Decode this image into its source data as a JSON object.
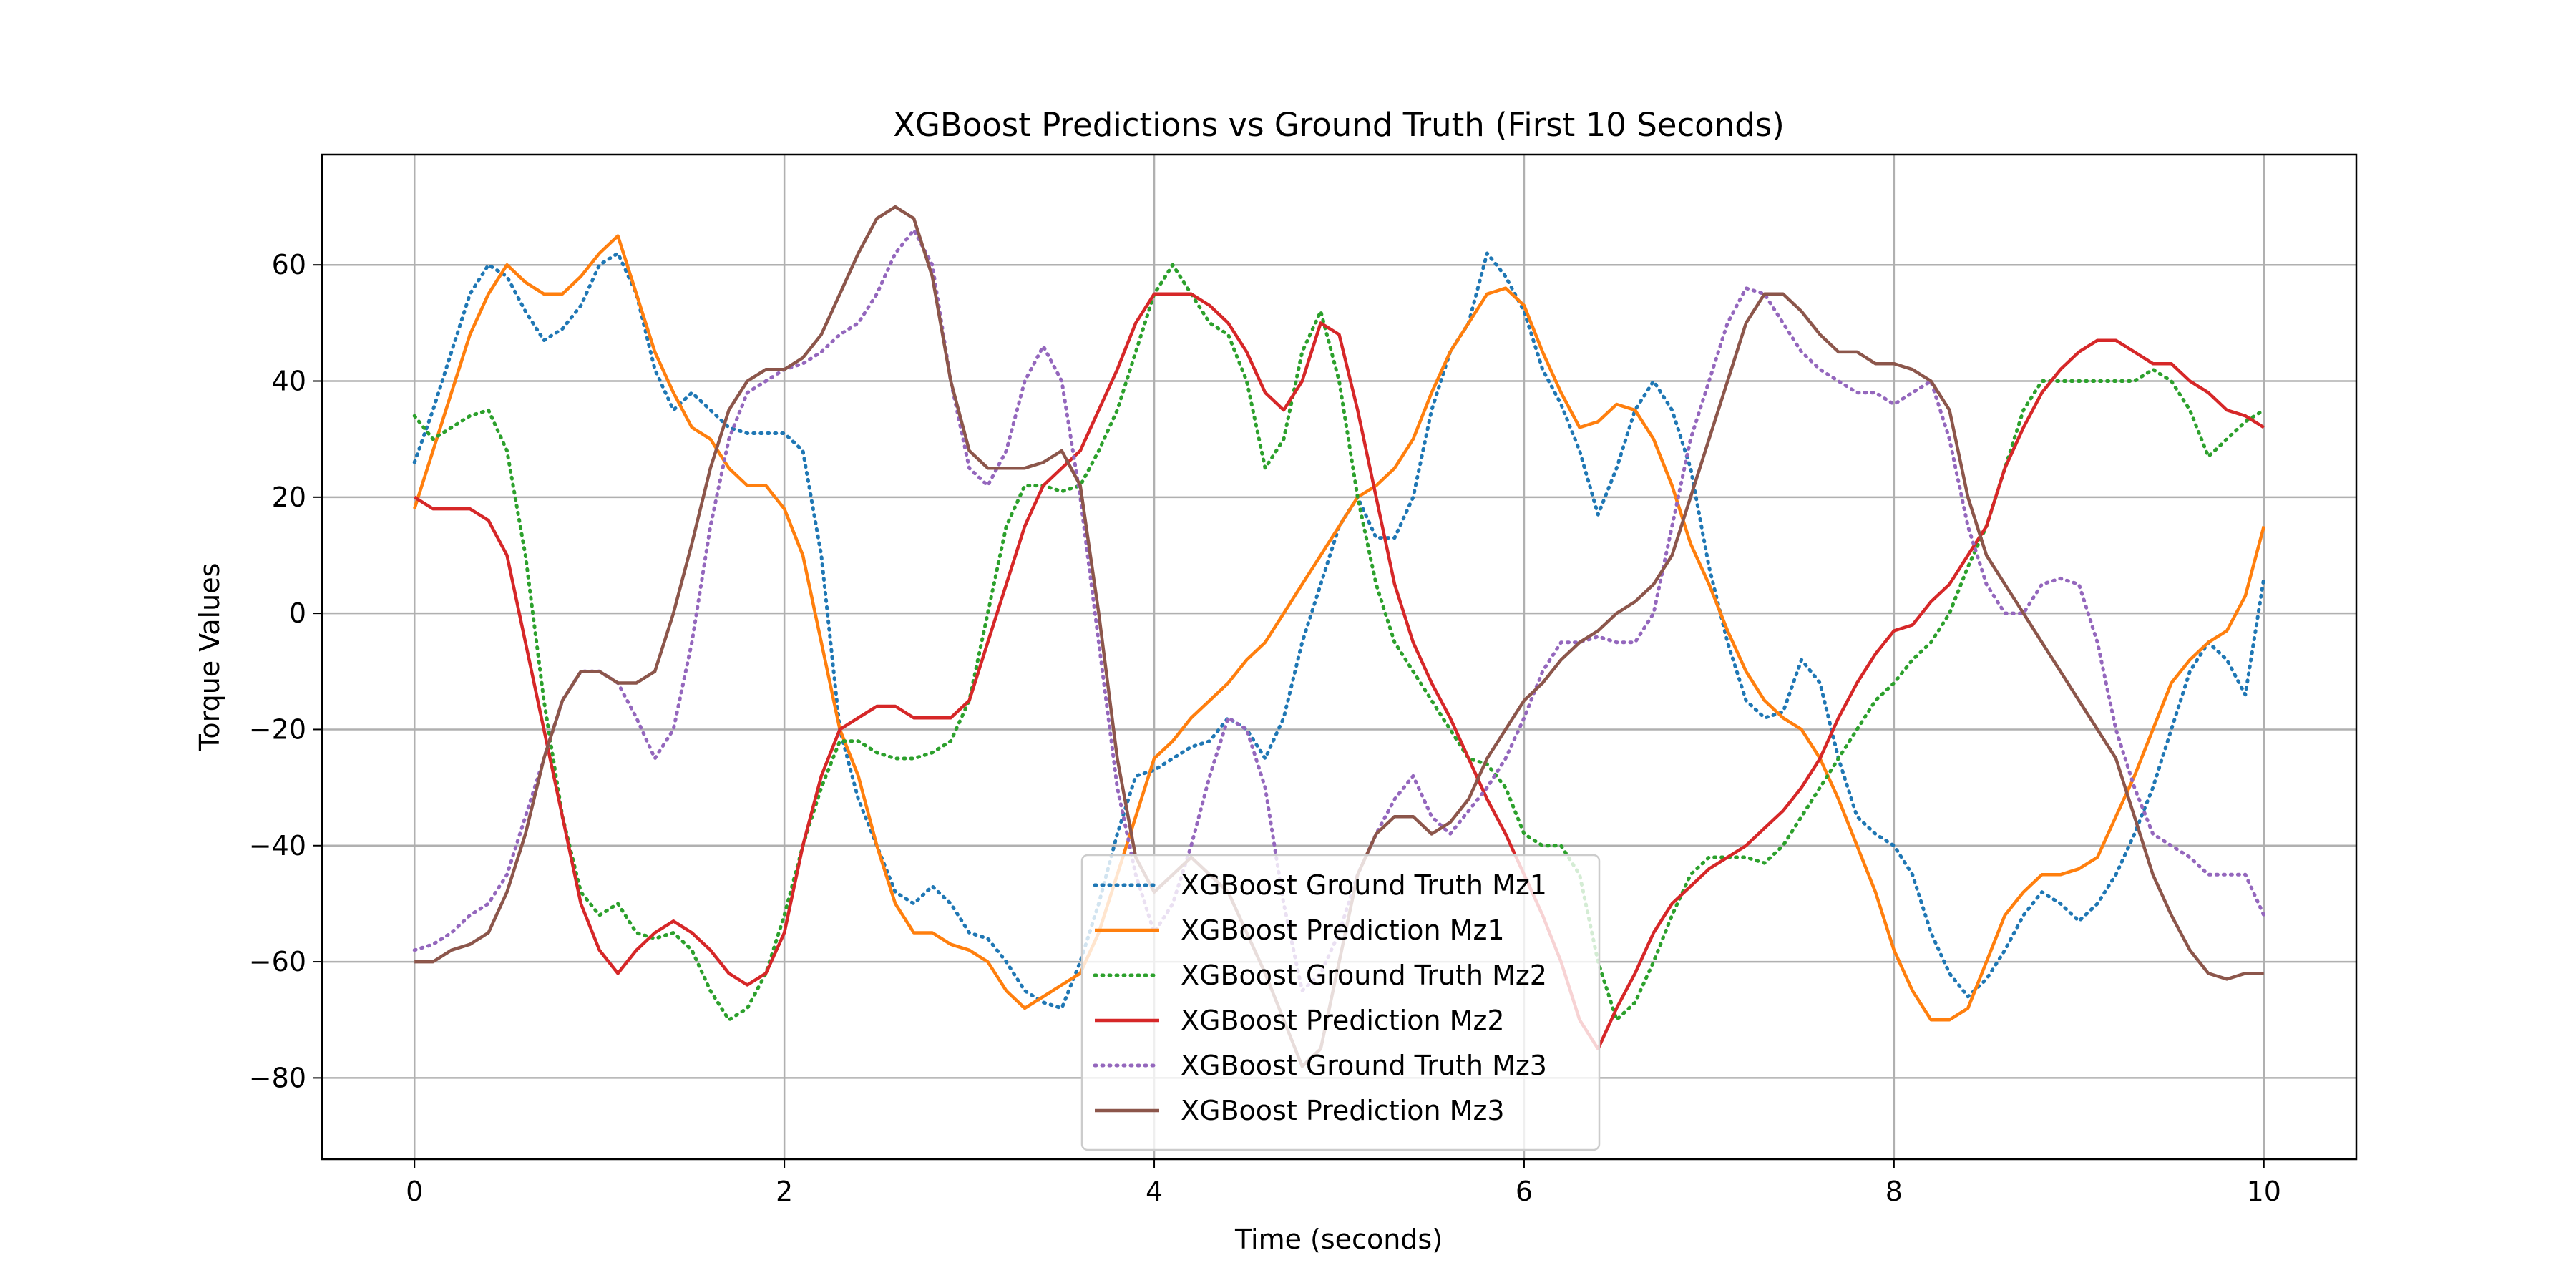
{
  "chart_data": {
    "type": "line",
    "title": "XGBoost Predictions vs Ground Truth (First 10 Seconds)",
    "xlabel": "Time (seconds)",
    "ylabel": "Torque Values",
    "xlim": [
      -0.5,
      10.5
    ],
    "ylim": [
      -94,
      79
    ],
    "xticks": [
      0,
      2,
      4,
      6,
      8,
      10
    ],
    "yticks": [
      -80,
      -60,
      -40,
      -20,
      0,
      20,
      40,
      60
    ],
    "grid": true,
    "legend": "lower-center",
    "series": [
      {
        "name": "XGBoost Ground Truth Mz1",
        "color": "#1f77b4",
        "style": "dotted",
        "x": [
          0,
          0.1,
          0.2,
          0.3,
          0.4,
          0.5,
          0.6,
          0.7,
          0.8,
          0.9,
          1.0,
          1.1,
          1.2,
          1.3,
          1.4,
          1.5,
          1.6,
          1.7,
          1.8,
          1.9,
          2.0,
          2.1,
          2.2,
          2.3,
          2.4,
          2.5,
          2.6,
          2.7,
          2.8,
          2.9,
          3.0,
          3.1,
          3.2,
          3.3,
          3.4,
          3.5,
          3.6,
          3.7,
          3.8,
          3.9,
          4.0,
          4.1,
          4.2,
          4.3,
          4.4,
          4.5,
          4.6,
          4.7,
          4.8,
          4.9,
          5.0,
          5.1,
          5.2,
          5.3,
          5.4,
          5.5,
          5.6,
          5.7,
          5.8,
          5.9,
          6.0,
          6.1,
          6.2,
          6.3,
          6.4,
          6.5,
          6.6,
          6.7,
          6.8,
          6.9,
          7.0,
          7.1,
          7.2,
          7.3,
          7.4,
          7.5,
          7.6,
          7.7,
          7.8,
          7.9,
          8.0,
          8.1,
          8.2,
          8.3,
          8.4,
          8.5,
          8.6,
          8.7,
          8.8,
          8.9,
          9.0,
          9.1,
          9.2,
          9.3,
          9.4,
          9.5,
          9.6,
          9.7,
          9.8,
          9.9,
          10.0
        ],
        "y": [
          26,
          35,
          45,
          55,
          60,
          58,
          52,
          47,
          49,
          53,
          60,
          62,
          55,
          42,
          35,
          38,
          35,
          32,
          31,
          31,
          31,
          28,
          10,
          -20,
          -32,
          -40,
          -48,
          -50,
          -47,
          -50,
          -55,
          -56,
          -60,
          -65,
          -67,
          -68,
          -60,
          -50,
          -38,
          -28,
          -27,
          -25,
          -23,
          -22,
          -18,
          -20,
          -25,
          -18,
          -5,
          5,
          15,
          20,
          13,
          13,
          20,
          35,
          45,
          50,
          62,
          58,
          52,
          42,
          36,
          28,
          17,
          25,
          35,
          40,
          35,
          25,
          8,
          -5,
          -15,
          -18,
          -17,
          -8,
          -12,
          -25,
          -35,
          -38,
          -40,
          -45,
          -55,
          -62,
          -66,
          -63,
          -58,
          -52,
          -48,
          -50,
          -53,
          -50,
          -45,
          -38,
          -30,
          -20,
          -10,
          -5,
          -8,
          -14,
          6
        ]
      },
      {
        "name": "XGBoost Prediction Mz1",
        "color": "#ff7f0e",
        "style": "solid",
        "x": [
          0,
          0.1,
          0.2,
          0.3,
          0.4,
          0.5,
          0.6,
          0.7,
          0.8,
          0.9,
          1.0,
          1.1,
          1.2,
          1.3,
          1.4,
          1.5,
          1.6,
          1.7,
          1.8,
          1.9,
          2.0,
          2.1,
          2.2,
          2.3,
          2.4,
          2.5,
          2.6,
          2.7,
          2.8,
          2.9,
          3.0,
          3.1,
          3.2,
          3.3,
          3.4,
          3.5,
          3.6,
          3.7,
          3.8,
          3.9,
          4.0,
          4.1,
          4.2,
          4.3,
          4.4,
          4.5,
          4.6,
          4.7,
          4.8,
          4.9,
          5.0,
          5.1,
          5.2,
          5.3,
          5.4,
          5.5,
          5.6,
          5.7,
          5.8,
          5.9,
          6.0,
          6.1,
          6.2,
          6.3,
          6.4,
          6.5,
          6.6,
          6.7,
          6.8,
          6.9,
          7.0,
          7.1,
          7.2,
          7.3,
          7.4,
          7.5,
          7.6,
          7.7,
          7.8,
          7.9,
          8.0,
          8.1,
          8.2,
          8.3,
          8.4,
          8.5,
          8.6,
          8.7,
          8.8,
          8.9,
          9.0,
          9.1,
          9.2,
          9.3,
          9.4,
          9.5,
          9.6,
          9.7,
          9.8,
          9.9,
          10.0
        ],
        "y": [
          18,
          28,
          38,
          48,
          55,
          60,
          57,
          55,
          55,
          58,
          62,
          65,
          55,
          45,
          38,
          32,
          30,
          25,
          22,
          22,
          18,
          10,
          -5,
          -20,
          -28,
          -40,
          -50,
          -55,
          -55,
          -57,
          -58,
          -60,
          -65,
          -68,
          -66,
          -64,
          -62,
          -55,
          -45,
          -35,
          -25,
          -22,
          -18,
          -15,
          -12,
          -8,
          -5,
          0,
          5,
          10,
          15,
          20,
          22,
          25,
          30,
          38,
          45,
          50,
          55,
          56,
          53,
          45,
          38,
          32,
          33,
          36,
          35,
          30,
          22,
          12,
          5,
          -3,
          -10,
          -15,
          -18,
          -20,
          -25,
          -32,
          -40,
          -48,
          -58,
          -65,
          -70,
          -70,
          -68,
          -60,
          -52,
          -48,
          -45,
          -45,
          -44,
          -42,
          -35,
          -28,
          -20,
          -12,
          -8,
          -5,
          -3,
          3,
          15
        ]
      },
      {
        "name": "XGBoost Ground Truth Mz2",
        "color": "#2ca02c",
        "style": "dotted",
        "x": [
          0,
          0.1,
          0.2,
          0.3,
          0.4,
          0.5,
          0.6,
          0.7,
          0.8,
          0.9,
          1.0,
          1.1,
          1.2,
          1.3,
          1.4,
          1.5,
          1.6,
          1.7,
          1.8,
          1.9,
          2.0,
          2.1,
          2.2,
          2.3,
          2.4,
          2.5,
          2.6,
          2.7,
          2.8,
          2.9,
          3.0,
          3.1,
          3.2,
          3.3,
          3.4,
          3.5,
          3.6,
          3.7,
          3.8,
          3.9,
          4.0,
          4.1,
          4.2,
          4.3,
          4.4,
          4.5,
          4.6,
          4.7,
          4.8,
          4.9,
          5.0,
          5.1,
          5.2,
          5.3,
          5.4,
          5.5,
          5.6,
          5.7,
          5.8,
          5.9,
          6.0,
          6.1,
          6.2,
          6.3,
          6.4,
          6.5,
          6.6,
          6.7,
          6.8,
          6.9,
          7.0,
          7.1,
          7.2,
          7.3,
          7.4,
          7.5,
          7.6,
          7.7,
          7.8,
          7.9,
          8.0,
          8.1,
          8.2,
          8.3,
          8.4,
          8.5,
          8.6,
          8.7,
          8.8,
          8.9,
          9.0,
          9.1,
          9.2,
          9.3,
          9.4,
          9.5,
          9.6,
          9.7,
          9.8,
          9.9,
          10.0
        ],
        "y": [
          34,
          30,
          32,
          34,
          35,
          28,
          10,
          -15,
          -35,
          -48,
          -52,
          -50,
          -55,
          -56,
          -55,
          -58,
          -65,
          -70,
          -68,
          -62,
          -52,
          -40,
          -30,
          -22,
          -22,
          -24,
          -25,
          -25,
          -24,
          -22,
          -15,
          0,
          15,
          22,
          22,
          21,
          22,
          28,
          35,
          45,
          55,
          60,
          55,
          50,
          48,
          40,
          25,
          30,
          45,
          52,
          40,
          20,
          5,
          -5,
          -10,
          -15,
          -20,
          -25,
          -26,
          -30,
          -38,
          -40,
          -40,
          -45,
          -60,
          -70,
          -67,
          -60,
          -52,
          -45,
          -42,
          -42,
          -42,
          -43,
          -40,
          -35,
          -30,
          -25,
          -20,
          -15,
          -12,
          -8,
          -5,
          0,
          8,
          15,
          25,
          35,
          40,
          40,
          40,
          40,
          40,
          40,
          42,
          40,
          35,
          27,
          30,
          33,
          35
        ]
      },
      {
        "name": "XGBoost Prediction Mz2",
        "color": "#d62728",
        "style": "solid",
        "x": [
          0,
          0.1,
          0.2,
          0.3,
          0.4,
          0.5,
          0.6,
          0.7,
          0.8,
          0.9,
          1.0,
          1.1,
          1.2,
          1.3,
          1.4,
          1.5,
          1.6,
          1.7,
          1.8,
          1.9,
          2.0,
          2.1,
          2.2,
          2.3,
          2.4,
          2.5,
          2.6,
          2.7,
          2.8,
          2.9,
          3.0,
          3.1,
          3.2,
          3.3,
          3.4,
          3.5,
          3.6,
          3.7,
          3.8,
          3.9,
          4.0,
          4.1,
          4.2,
          4.3,
          4.4,
          4.5,
          4.6,
          4.7,
          4.8,
          4.9,
          5.0,
          5.1,
          5.2,
          5.3,
          5.4,
          5.5,
          5.6,
          5.7,
          5.8,
          5.9,
          6.0,
          6.1,
          6.2,
          6.3,
          6.4,
          6.5,
          6.6,
          6.7,
          6.8,
          6.9,
          7.0,
          7.1,
          7.2,
          7.3,
          7.4,
          7.5,
          7.6,
          7.7,
          7.8,
          7.9,
          8.0,
          8.1,
          8.2,
          8.3,
          8.4,
          8.5,
          8.6,
          8.7,
          8.8,
          8.9,
          9.0,
          9.1,
          9.2,
          9.3,
          9.4,
          9.5,
          9.6,
          9.7,
          9.8,
          9.9,
          10.0
        ],
        "y": [
          20,
          18,
          18,
          18,
          16,
          10,
          -5,
          -20,
          -35,
          -50,
          -58,
          -62,
          -58,
          -55,
          -53,
          -55,
          -58,
          -62,
          -64,
          -62,
          -55,
          -40,
          -28,
          -20,
          -18,
          -16,
          -16,
          -18,
          -18,
          -18,
          -15,
          -5,
          5,
          15,
          22,
          25,
          28,
          35,
          42,
          50,
          55,
          55,
          55,
          53,
          50,
          45,
          38,
          35,
          40,
          50,
          48,
          35,
          20,
          5,
          -5,
          -12,
          -18,
          -25,
          -32,
          -38,
          -45,
          -52,
          -60,
          -70,
          -75,
          -68,
          -62,
          -55,
          -50,
          -47,
          -44,
          -42,
          -40,
          -37,
          -34,
          -30,
          -25,
          -18,
          -12,
          -7,
          -3,
          -2,
          2,
          5,
          10,
          15,
          25,
          32,
          38,
          42,
          45,
          47,
          47,
          45,
          43,
          43,
          40,
          38,
          35,
          34,
          32
        ]
      },
      {
        "name": "XGBoost Ground Truth Mz3",
        "color": "#9467bd",
        "style": "dotted",
        "x": [
          0,
          0.1,
          0.2,
          0.3,
          0.4,
          0.5,
          0.6,
          0.7,
          0.8,
          0.9,
          1.0,
          1.1,
          1.2,
          1.3,
          1.4,
          1.5,
          1.6,
          1.7,
          1.8,
          1.9,
          2.0,
          2.1,
          2.2,
          2.3,
          2.4,
          2.5,
          2.6,
          2.7,
          2.8,
          2.9,
          3.0,
          3.1,
          3.2,
          3.3,
          3.4,
          3.5,
          3.6,
          3.7,
          3.8,
          3.9,
          4.0,
          4.1,
          4.2,
          4.3,
          4.4,
          4.5,
          4.6,
          4.7,
          4.8,
          4.9,
          5.0,
          5.1,
          5.2,
          5.3,
          5.4,
          5.5,
          5.6,
          5.7,
          5.8,
          5.9,
          6.0,
          6.1,
          6.2,
          6.3,
          6.4,
          6.5,
          6.6,
          6.7,
          6.8,
          6.9,
          7.0,
          7.1,
          7.2,
          7.3,
          7.4,
          7.5,
          7.6,
          7.7,
          7.8,
          7.9,
          8.0,
          8.1,
          8.2,
          8.3,
          8.4,
          8.5,
          8.6,
          8.7,
          8.8,
          8.9,
          9.0,
          9.1,
          9.2,
          9.3,
          9.4,
          9.5,
          9.6,
          9.7,
          9.8,
          9.9,
          10.0
        ],
        "y": [
          -58,
          -57,
          -55,
          -52,
          -50,
          -45,
          -35,
          -25,
          -15,
          -10,
          -10,
          -12,
          -18,
          -25,
          -20,
          -5,
          15,
          30,
          38,
          40,
          42,
          43,
          45,
          48,
          50,
          55,
          62,
          66,
          60,
          40,
          25,
          22,
          28,
          40,
          46,
          40,
          20,
          -5,
          -30,
          -45,
          -55,
          -50,
          -40,
          -28,
          -18,
          -20,
          -30,
          -50,
          -65,
          -62,
          -55,
          -45,
          -38,
          -32,
          -28,
          -35,
          -38,
          -34,
          -30,
          -25,
          -18,
          -10,
          -5,
          -5,
          -4,
          -5,
          -5,
          0,
          15,
          30,
          40,
          50,
          56,
          55,
          50,
          45,
          42,
          40,
          38,
          38,
          36,
          38,
          40,
          30,
          15,
          5,
          0,
          0,
          5,
          6,
          5,
          -5,
          -20,
          -30,
          -38,
          -40,
          -42,
          -45,
          -45,
          -45,
          -52
        ]
      },
      {
        "name": "XGBoost Prediction Mz3",
        "color": "#8c564b",
        "style": "solid",
        "x": [
          0,
          0.1,
          0.2,
          0.3,
          0.4,
          0.5,
          0.6,
          0.7,
          0.8,
          0.9,
          1.0,
          1.1,
          1.2,
          1.3,
          1.4,
          1.5,
          1.6,
          1.7,
          1.8,
          1.9,
          2.0,
          2.1,
          2.2,
          2.3,
          2.4,
          2.5,
          2.6,
          2.7,
          2.8,
          2.9,
          3.0,
          3.1,
          3.2,
          3.3,
          3.4,
          3.5,
          3.6,
          3.7,
          3.8,
          3.9,
          4.0,
          4.1,
          4.2,
          4.3,
          4.4,
          4.5,
          4.6,
          4.7,
          4.8,
          4.9,
          5.0,
          5.1,
          5.2,
          5.3,
          5.4,
          5.5,
          5.6,
          5.7,
          5.8,
          5.9,
          6.0,
          6.1,
          6.2,
          6.3,
          6.4,
          6.5,
          6.6,
          6.7,
          6.8,
          6.9,
          7.0,
          7.1,
          7.2,
          7.3,
          7.4,
          7.5,
          7.6,
          7.7,
          7.8,
          7.9,
          8.0,
          8.1,
          8.2,
          8.3,
          8.4,
          8.5,
          8.6,
          8.7,
          8.8,
          8.9,
          9.0,
          9.1,
          9.2,
          9.3,
          9.4,
          9.5,
          9.6,
          9.7,
          9.8,
          9.9,
          10.0
        ],
        "y": [
          -60,
          -60,
          -58,
          -57,
          -55,
          -48,
          -38,
          -25,
          -15,
          -10,
          -10,
          -12,
          -12,
          -10,
          0,
          12,
          25,
          35,
          40,
          42,
          42,
          44,
          48,
          55,
          62,
          68,
          70,
          68,
          58,
          40,
          28,
          25,
          25,
          25,
          26,
          28,
          22,
          0,
          -25,
          -42,
          -48,
          -45,
          -42,
          -45,
          -48,
          -55,
          -62,
          -70,
          -78,
          -75,
          -60,
          -45,
          -38,
          -35,
          -35,
          -38,
          -36,
          -32,
          -25,
          -20,
          -15,
          -12,
          -8,
          -5,
          -3,
          0,
          2,
          5,
          10,
          20,
          30,
          40,
          50,
          55,
          55,
          52,
          48,
          45,
          45,
          43,
          43,
          42,
          40,
          35,
          20,
          10,
          5,
          0,
          -5,
          -10,
          -15,
          -20,
          -25,
          -35,
          -45,
          -52,
          -58,
          -62,
          -63,
          -62,
          -62
        ]
      }
    ]
  }
}
